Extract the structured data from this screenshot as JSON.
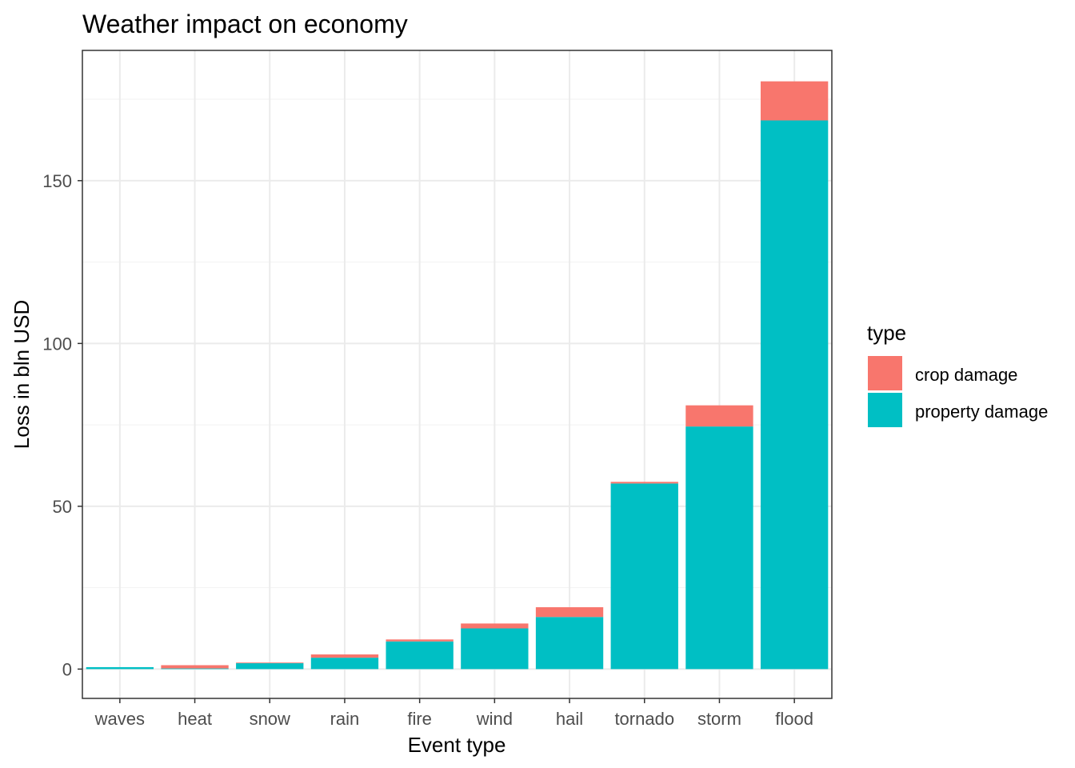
{
  "chart_data": {
    "type": "bar",
    "stacked": true,
    "title": "Weather impact on economy",
    "xlabel": "Event type",
    "ylabel": "Loss in bln USD",
    "ylim": [
      -9,
      190
    ],
    "yticks": [
      0,
      50,
      100,
      150
    ],
    "grid": true,
    "legend_position": "right",
    "categories": [
      "waves",
      "heat",
      "snow",
      "rain",
      "fire",
      "wind",
      "hail",
      "tornado",
      "storm",
      "flood"
    ],
    "series": [
      {
        "name": "property damage",
        "color": "#00BFC4",
        "values": [
          0.6,
          0.2,
          1.8,
          3.5,
          8.5,
          12.5,
          16.0,
          57.0,
          74.5,
          168.5
        ]
      },
      {
        "name": "crop damage",
        "color": "#F8766D",
        "values": [
          0.0,
          1.0,
          0.2,
          1.0,
          0.6,
          1.5,
          3.0,
          0.5,
          6.5,
          12.0
        ]
      }
    ],
    "legend": {
      "title": "type",
      "entries": [
        "crop damage",
        "property damage"
      ]
    }
  }
}
